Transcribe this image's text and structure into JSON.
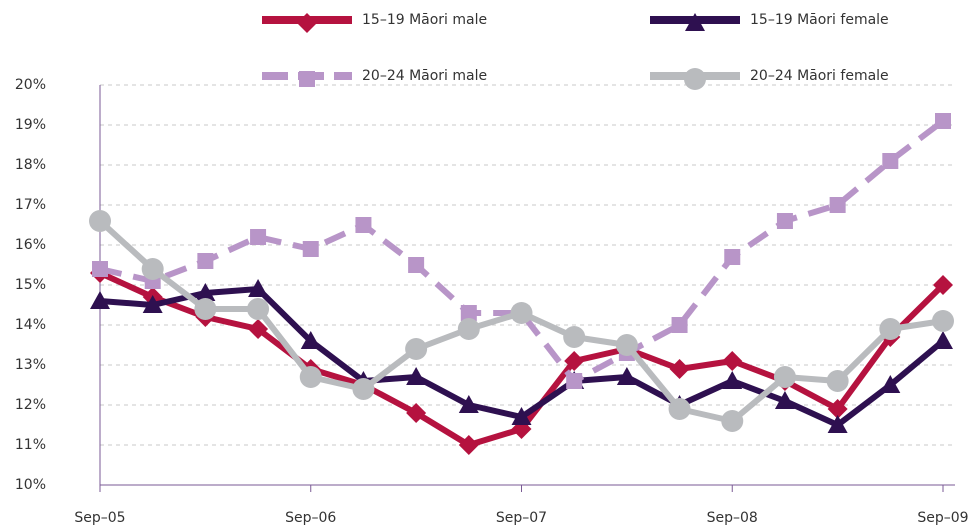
{
  "chart_data": {
    "type": "line",
    "categories": [
      "Sep–05",
      null,
      null,
      null,
      "Sep–06",
      null,
      null,
      null,
      "Sep–07",
      null,
      null,
      null,
      "Sep–08",
      null,
      null,
      null,
      "Sep–09"
    ],
    "ylim": [
      10,
      20
    ],
    "yticks": [
      {
        "value": 10,
        "label": "10%"
      },
      {
        "value": 11,
        "label": "11%"
      },
      {
        "value": 12,
        "label": "12%"
      },
      {
        "value": 13,
        "label": "13%"
      },
      {
        "value": 14,
        "label": "14%"
      },
      {
        "value": 15,
        "label": "15%"
      },
      {
        "value": 16,
        "label": "16%"
      },
      {
        "value": 17,
        "label": "17%"
      },
      {
        "value": 18,
        "label": "18%"
      },
      {
        "value": 19,
        "label": "19%"
      },
      {
        "value": 20,
        "label": "20%"
      }
    ],
    "grid": true,
    "series": [
      {
        "name": "15–19 Māori male",
        "color": "#b5123f",
        "marker": "diamond",
        "values": [
          15.3,
          14.7,
          14.2,
          13.9,
          12.9,
          12.5,
          11.8,
          11.0,
          11.4,
          13.1,
          13.4,
          12.9,
          13.1,
          12.6,
          11.9,
          13.7,
          15.0
        ]
      },
      {
        "name": "15–19 Māori female",
        "color": "#2e1050",
        "marker": "triangle",
        "values": [
          14.6,
          14.5,
          14.8,
          14.9,
          13.6,
          12.6,
          12.7,
          12.0,
          11.7,
          12.6,
          12.7,
          12.0,
          12.6,
          12.1,
          11.5,
          12.5,
          13.6
        ]
      },
      {
        "name": "20–24 Māori male",
        "color": "#b895c8",
        "marker": "square",
        "dashed": true,
        "values": [
          15.4,
          15.1,
          15.6,
          16.2,
          15.9,
          16.5,
          15.5,
          14.3,
          14.3,
          12.6,
          13.3,
          14.0,
          15.7,
          16.6,
          17.0,
          18.1,
          19.1
        ]
      },
      {
        "name": "20–24 Māori female",
        "color": "#b9bbbe",
        "marker": "circle",
        "values": [
          16.6,
          15.4,
          14.4,
          14.4,
          12.7,
          12.4,
          13.4,
          13.9,
          14.3,
          13.7,
          13.5,
          11.9,
          11.6,
          12.7,
          12.6,
          13.9,
          14.1
        ]
      }
    ]
  }
}
